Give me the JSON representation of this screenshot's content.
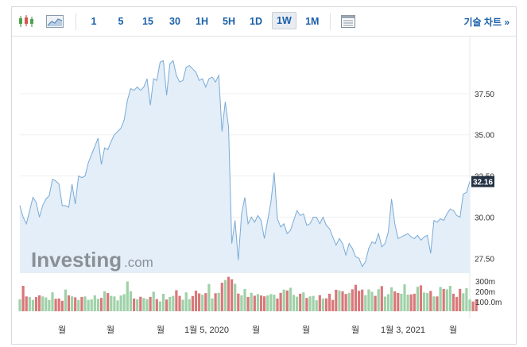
{
  "toolbar": {
    "chart_type_icons": [
      "candlestick-icon",
      "area-chart-icon"
    ],
    "periods": [
      "1",
      "5",
      "15",
      "30",
      "1H",
      "5H",
      "1D",
      "1W",
      "1M"
    ],
    "active_period": "1W",
    "table_icon": "table-icon",
    "technical_chart_label": "기술 차트 »"
  },
  "watermark": {
    "word": "Investing",
    "suffix": ".com"
  },
  "chart_data": {
    "type": "area",
    "colors": {
      "line": "#7aaad6",
      "fill": "#e3eef8",
      "volume_up": "#9fd1a8",
      "volume_down": "#d9787a",
      "price_tag": "#243244"
    },
    "y_axis": {
      "ticks": [
        27.5,
        30.0,
        32.5,
        35.0,
        37.5
      ],
      "tick_labels": [
        "27.50",
        "30.00",
        "32.50",
        "35.00",
        "37.50"
      ],
      "ylim": [
        26.6,
        40.0
      ]
    },
    "volume_axis": {
      "tick_labels": [
        "300m",
        "200m",
        "100.0m"
      ]
    },
    "x_axis": {
      "tick_labels": [
        "월",
        "월",
        "월",
        "1월 5, 2020",
        "월",
        "월",
        "월",
        "1월 3, 2021",
        "월"
      ]
    },
    "last_price_label": "32.16",
    "grid": true,
    "series": [
      {
        "values": [
          30.7,
          30.0,
          29.6,
          30.4,
          31.2,
          30.9,
          30.0,
          30.7,
          31.1,
          31.3,
          32.3,
          32.2,
          32.0,
          30.7,
          30.7,
          30.6,
          32.0,
          30.8,
          32.5,
          32.4,
          32.5,
          33.3,
          33.8,
          34.3,
          34.8,
          33.2,
          34.2,
          34.1,
          34.6,
          35.0,
          35.2,
          35.4,
          35.9,
          37.1,
          37.8,
          37.7,
          37.9,
          37.7,
          37.9,
          38.4,
          36.8,
          38.4,
          38.3,
          39.4,
          39.5,
          37.4,
          39.3,
          39.5,
          38.6,
          38.2,
          38.3,
          39.1,
          39.2,
          39.0,
          38.8,
          38.3,
          38.4,
          37.9,
          38.4,
          38.5,
          38.2,
          38.6,
          35.2,
          37.0,
          35.5,
          28.4,
          29.8,
          27.4,
          30.2,
          31.2,
          29.6,
          30.0,
          29.7,
          30.1,
          29.8,
          28.7,
          29.8,
          30.9,
          32.7,
          29.9,
          29.4,
          29.6,
          29.0,
          29.2,
          29.8,
          30.4,
          30.1,
          30.2,
          29.5,
          29.6,
          30.0,
          30.0,
          29.6,
          30.0,
          29.5,
          29.3,
          28.8,
          28.3,
          28.7,
          28.4,
          27.7,
          28.4,
          28.1,
          27.6,
          27.5,
          27.0,
          27.3,
          28.1,
          28.5,
          28.4,
          29.0,
          28.2,
          28.4,
          29.1,
          31.1,
          29.6,
          28.7,
          28.8,
          28.9,
          29.0,
          28.8,
          28.7,
          28.9,
          28.6,
          28.8,
          28.9,
          27.8,
          29.8,
          29.7,
          29.9,
          29.8,
          30.2,
          30.5,
          30.4,
          30.1,
          30.0,
          31.4,
          31.5,
          32.16
        ]
      },
      {
        "name": "volume",
        "values": [
          82,
          175,
          102,
          98,
          78,
          98,
          110,
          102,
          95,
          78,
          130,
          86,
          88,
          72,
          150,
          110,
          103,
          96,
          78,
          99,
          102,
          78,
          82,
          110,
          85,
          92,
          138,
          125,
          106,
          102,
          75,
          109,
          118,
          205,
          138,
          88,
          83,
          100,
          91,
          83,
          99,
          135,
          84,
          68,
          120,
          81,
          99,
          106,
          145,
          106,
          79,
          130,
          83,
          105,
          142,
          123,
          114,
          125,
          188,
          88,
          124,
          127,
          196,
          215,
          237,
          220,
          189,
          122,
          110,
          153,
          99,
          127,
          107,
          118,
          109,
          103,
          109,
          118,
          114,
          88,
          127,
          149,
          143,
          162,
          113,
          100,
          121,
          130,
          92,
          103,
          106,
          76,
          111,
          88,
          89,
          121,
          78,
          148,
          143,
          137,
          119,
          127,
          151,
          182,
          141,
          149,
          111,
          150,
          134,
          106,
          152,
          173,
          101,
          118,
          165,
          137,
          126,
          121,
          185,
          115,
          116,
          121,
          169,
          178,
          129,
          125,
          140,
          102,
          102,
          167,
          153,
          151,
          175,
          121,
          98,
          154,
          124,
          159,
          81,
          67,
          82
        ]
      }
    ]
  }
}
